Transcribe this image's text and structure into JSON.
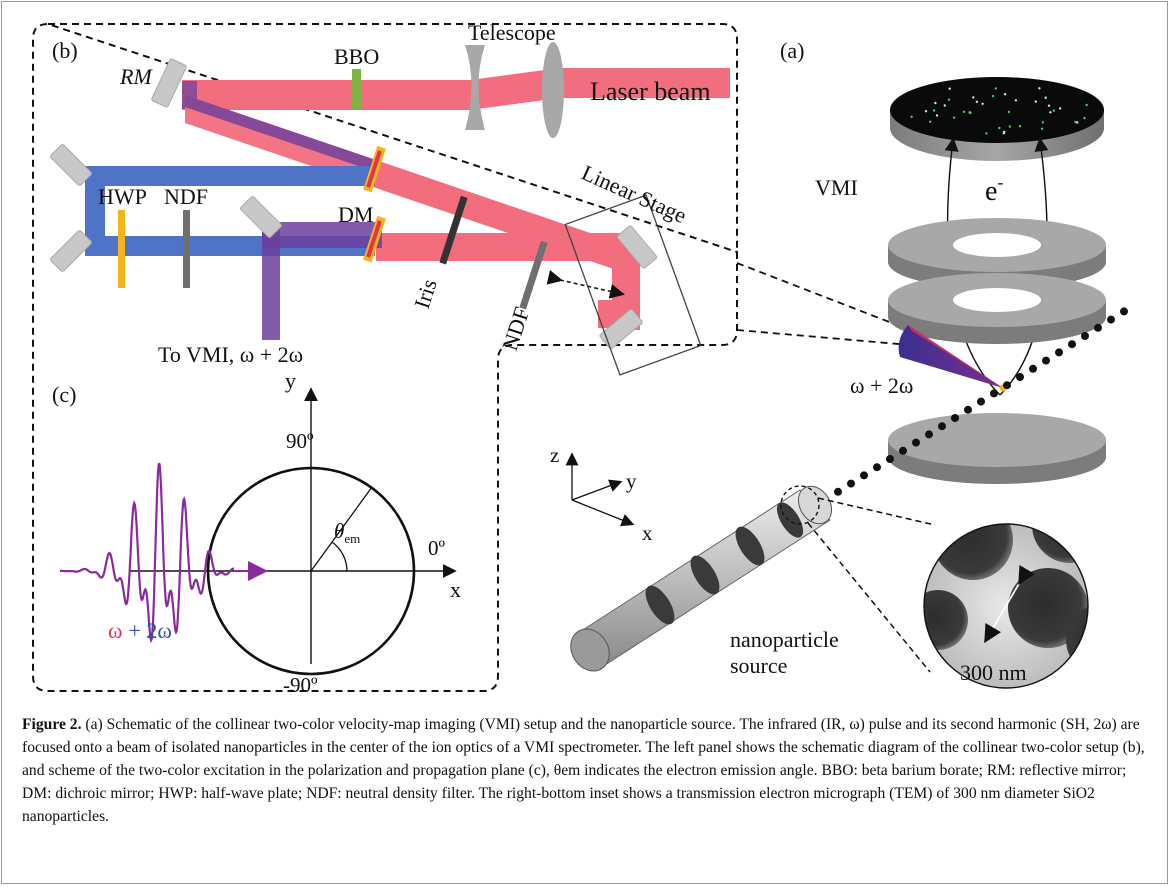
{
  "panels": {
    "b": {
      "label": "(b)",
      "component_labels": {
        "rm": "RM",
        "bbo": "BBO",
        "telescope": "Telescope",
        "laser_beam": "Laser beam",
        "hwp": "HWP",
        "ndf_blue": "NDF",
        "dm": "DM",
        "linear_stage": "Linear Stage",
        "iris": "Iris",
        "ndf_red": "NDF",
        "to_vmi": "To VMI, ω + 2ω"
      }
    },
    "a": {
      "label": "(a)",
      "vmi": "VMI",
      "electron": "e",
      "electron_sup": "-",
      "beam_label": "ω + 2ω",
      "axes": {
        "z": "z",
        "y": "y",
        "x": "x"
      },
      "source_line1": "nanoparticle",
      "source_line2": "source",
      "tem_scale": "300 nm"
    },
    "c": {
      "label": "(c)",
      "y_axis": "y",
      "x_axis": "x",
      "deg_top": "90º",
      "deg_right": "0º",
      "deg_bottom": "-90º",
      "theta": "θ",
      "theta_sub": "em",
      "omega": "ω",
      "plus2": "+ 2",
      "omega2": "ω"
    }
  },
  "caption": {
    "label": "Figure 2.",
    "text": " (a) Schematic of the collinear two-color velocity-map imaging (VMI) setup and the nanoparticle source. The infrared (IR, ω) pulse and its second harmonic (SH, 2ω) are focused onto a beam of isolated nanoparticles in the center of the ion optics of a VMI spectrometer. The left panel shows the schematic diagram of the collinear two-color setup (b), and scheme of the two-color excitation in the polarization and propagation plane (c), θem indicates the electron emission angle. BBO: beta barium borate; RM: reflective mirror; DM: dichroic mirror; HWP: half-wave plate; NDF: neutral density filter. The right-bottom inset shows a transmission electron micrograph (TEM) of 300 nm diameter SiO2 nanoparticles."
  },
  "colors": {
    "ir_beam": "#f26d7d",
    "sh_beam": "#4f73c6",
    "mixed_beam": "#6a3f9c",
    "bbo_crystal": "#7cb342",
    "hwp": "#f2b51b",
    "omega_red": "#e8324a",
    "omega_blue": "#2f4fb5",
    "wave_purple": "#8a2a9c",
    "mirror_gray": "#c8c8c8",
    "vmi_plate": "#8e8e8e"
  }
}
